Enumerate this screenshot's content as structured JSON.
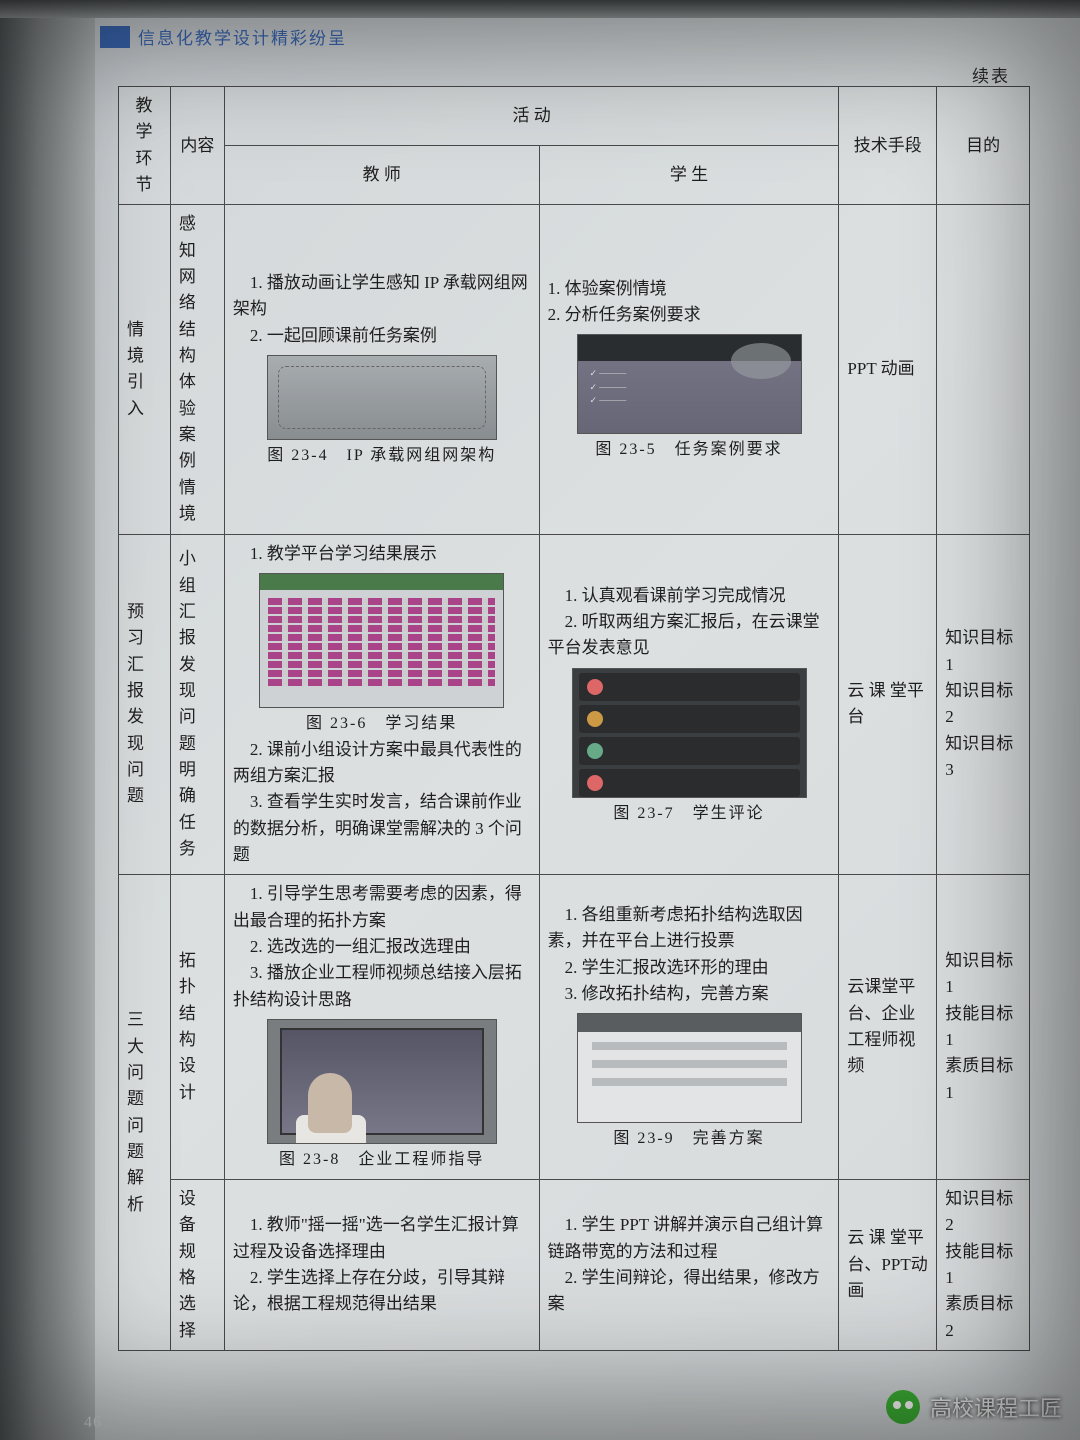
{
  "header": {
    "title": "信息化教学设计精彩纷呈"
  },
  "continued": "续表",
  "columns": {
    "segment": "教学\n环节",
    "content": "内容",
    "activity": "活  动",
    "teacher": "教  师",
    "student": "学  生",
    "tech": "技术手段",
    "goal": "目的"
  },
  "rows": [
    {
      "segment": "情境引入",
      "content": "感知网络结构体验案例情境",
      "teacher_lines": [
        "　1. 播放动画让学生感知 IP 承载网组网架构",
        "　2. 一起回顾课前任务案例"
      ],
      "teacher_fig_cap": "图 23-4　IP 承载网组网架构",
      "student_lines": [
        "1. 体验案例情境",
        "2. 分析任务案例要求"
      ],
      "student_fig_cap": "图 23-5　任务案例要求",
      "tech": "PPT 动画",
      "goal": ""
    },
    {
      "segment": "预习汇报发现问题",
      "content": "小组汇报发现问题明确任务",
      "teacher_lines_top": [
        "　1. 教学平台学习结果展示"
      ],
      "teacher_fig_cap": "图 23-6　学习结果",
      "teacher_lines_bottom": [
        "　2. 课前小组设计方案中最具代表性的两组方案汇报",
        "　3. 查看学生实时发言，结合课前作业的数据分析，明确课堂需解决的 3 个问题"
      ],
      "student_lines": [
        "　1. 认真观看课前学习完成情况",
        "　2. 听取两组方案汇报后，在云课堂平台发表意见"
      ],
      "student_fig_cap": "图 23-7　学生评论",
      "tech": "云 课 堂平台",
      "goal": "知识目标 1\n知识目标 2\n知识目标 3"
    },
    {
      "segment": "三大问题问题解析",
      "sub1": {
        "content": "拓扑结构设计",
        "teacher_lines": [
          "　1. 引导学生思考需要考虑的因素，得出最合理的拓扑方案",
          "　2. 选改选的一组汇报改选理由",
          "　3. 播放企业工程师视频总结接入层拓扑结构设计思路"
        ],
        "teacher_fig_cap": "图 23-8　企业工程师指导",
        "student_lines": [
          "　1. 各组重新考虑拓扑结构选取因素，并在平台上进行投票",
          "　2. 学生汇报改选环形的理由",
          "　3. 修改拓扑结构，完善方案"
        ],
        "student_fig_cap": "图 23-9　完善方案",
        "tech": "云课堂平台、企业工程师视频",
        "goal": "知识目标 1\n技能目标 1\n素质目标 1"
      },
      "sub2": {
        "content": "设备规格选择",
        "teacher_lines": [
          "　1. 教师\"摇一摇\"选一名学生汇报计算过程及设备选择理由",
          "　2. 学生选择上存在分歧，引导其辩论，根据工程规范得出结果"
        ],
        "student_lines": [
          "　1. 学生 PPT 讲解并演示自己组计算链路带宽的方法和过程",
          "　2. 学生间辩论，得出结果，修改方案"
        ],
        "tech": "云 课 堂平 台、PPT动画",
        "goal": "知识目标 2\n技能目标 1\n素质目标 2"
      }
    }
  ],
  "page_number": "46",
  "watermark": "高校课程工匠"
}
